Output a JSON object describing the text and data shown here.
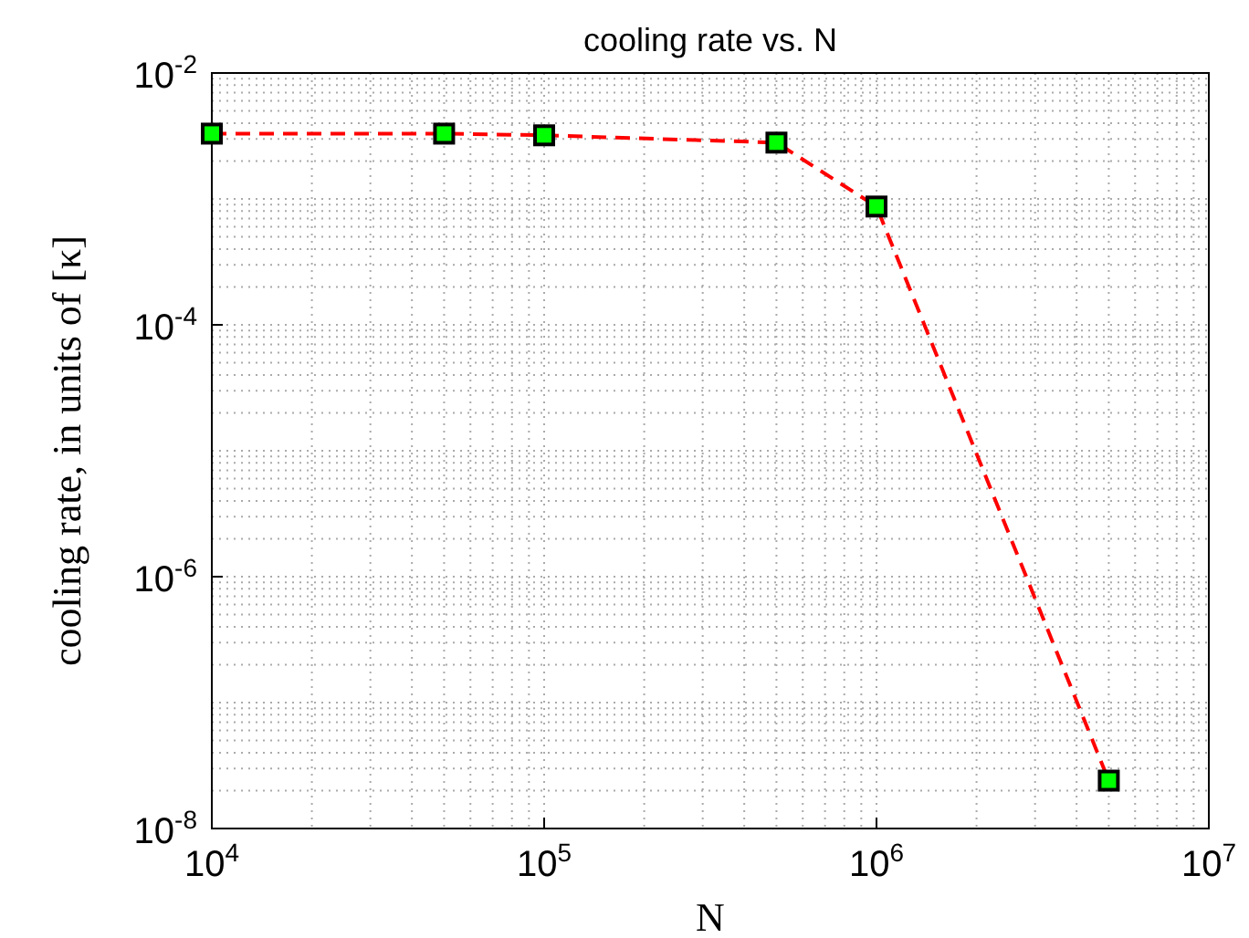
{
  "chart_data": {
    "type": "line",
    "title": "cooling rate vs. N",
    "xlabel": "N",
    "ylabel": "cooling rate, in units of [κ]",
    "x": [
      10000,
      50000,
      100000,
      500000,
      1000000,
      5000000
    ],
    "series": [
      {
        "color": "#ff0000",
        "values": [
          0.0033,
          0.0033,
          0.0032,
          0.0028,
          0.00087,
          2.4e-08
        ]
      }
    ],
    "log": "xy",
    "xlim": [
      10000,
      10000000
    ],
    "ylim": [
      1e-08,
      0.01
    ],
    "xticks": [
      {
        "value": 10000,
        "label": "10$^{4}$"
      },
      {
        "value": 100000,
        "label": "10$^{5}$"
      },
      {
        "value": 1000000,
        "label": "10$^{6}$"
      },
      {
        "value": 10000000,
        "label": "10$^{7}$"
      }
    ],
    "yticks": [
      {
        "value": 1e-08,
        "label": "10$^{-8}$"
      },
      {
        "value": 1e-06,
        "label": "10$^{-6}$"
      },
      {
        "value": 0.0001,
        "label": "10$^{-4}$"
      },
      {
        "value": 0.01,
        "label": "10$^{-2}$"
      }
    ],
    "grid": true,
    "marker": "square",
    "line_style": "dashed"
  }
}
